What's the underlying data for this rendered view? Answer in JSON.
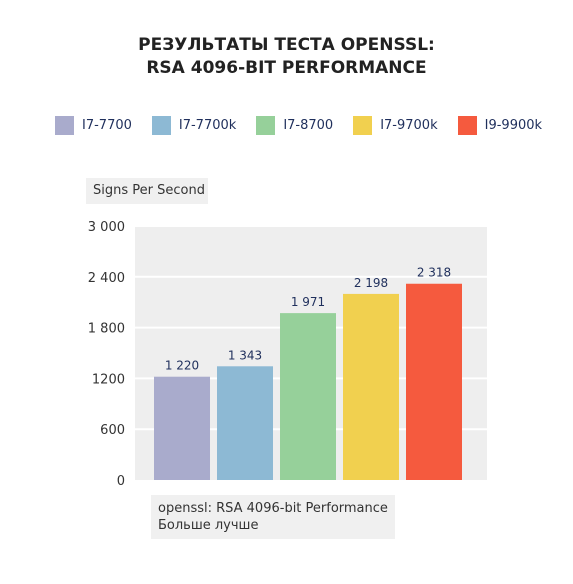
{
  "title": {
    "line1": "РЕЗУЛЬТАТЫ ТЕСТА OPENSSL:",
    "line2": "RSA 4096-BIT PERFORMANCE"
  },
  "legend": [
    {
      "label": "I7-7700",
      "color": "#a9abcc"
    },
    {
      "label": "I7-7700k",
      "color": "#8db9d4"
    },
    {
      "label": "I7-8700",
      "color": "#96d09a"
    },
    {
      "label": "I7-9700k",
      "color": "#f1d04f"
    },
    {
      "label": "I9-9900k",
      "color": "#f55a3e"
    }
  ],
  "note": {
    "line1": "openssl: RSA 4096-bit Performance",
    "line2": "Больше лучше"
  },
  "chart_data": {
    "type": "bar",
    "title": "РЕЗУЛЬТАТЫ ТЕСТА OPENSSL: RSA 4096-BIT PERFORMANCE",
    "ylabel": "Signs Per Second",
    "xlabel": "",
    "categories": [
      "I7-7700",
      "I7-7700k",
      "I7-8700",
      "I7-9700k",
      "I9-9900k"
    ],
    "values": [
      1220,
      1343,
      1971,
      2198,
      2318
    ],
    "value_labels": [
      "1 220",
      "1 343",
      "1 971",
      "2 198",
      "2 318"
    ],
    "colors": [
      "#a9abcc",
      "#8db9d4",
      "#96d09a",
      "#f1d04f",
      "#f55a3e"
    ],
    "ylim": [
      0,
      3000
    ],
    "yticks": [
      0,
      600,
      1200,
      1800,
      2400,
      3000
    ],
    "ytick_labels": [
      "0",
      "600",
      "1200",
      "1 800",
      "2 400",
      "3 000"
    ],
    "grid": true,
    "legend_position": "top"
  }
}
